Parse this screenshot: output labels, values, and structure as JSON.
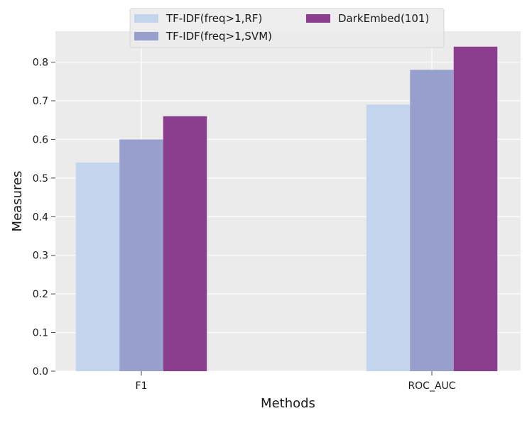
{
  "chart_data": {
    "type": "bar",
    "title": "",
    "xlabel": "Methods",
    "ylabel": "Measures",
    "categories": [
      "F1",
      "ROC_AUC"
    ],
    "series": [
      {
        "name": "TF-IDF(freq>1,RF)",
        "color": "#c3d5ec",
        "values": [
          0.54,
          0.69
        ]
      },
      {
        "name": "TF-IDF(freq>1,SVM)",
        "color": "#979fcd",
        "values": [
          0.6,
          0.78
        ]
      },
      {
        "name": "DarkEmbed(101)",
        "color": "#8b3e8e",
        "values": [
          0.66,
          0.84
        ]
      }
    ],
    "ylim": [
      0,
      0.88
    ],
    "yticks": [
      "0.0",
      "0.1",
      "0.2",
      "0.3",
      "0.4",
      "0.5",
      "0.6",
      "0.7",
      "0.8"
    ],
    "grid": true,
    "legend_position": "top-center",
    "background_color": "#ebebeb"
  }
}
